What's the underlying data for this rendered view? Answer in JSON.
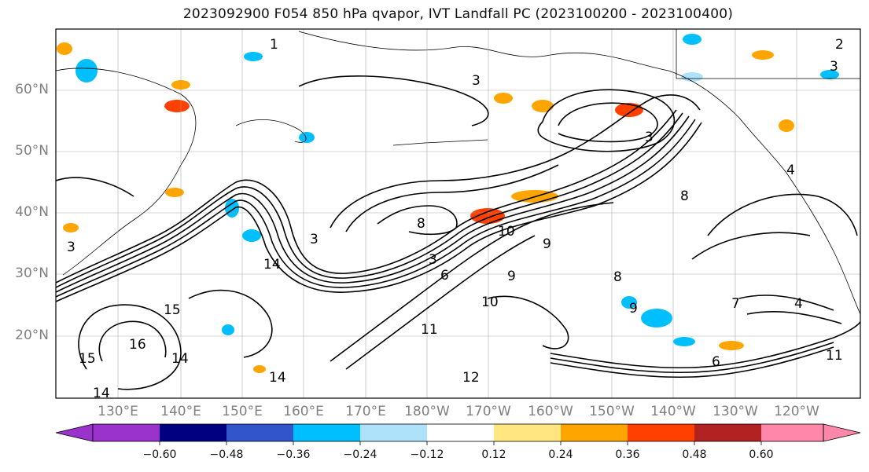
{
  "title": "2023092900 F054 850 hPa qvapor, IVT Landfall PC (2023100200 - 2023100400)",
  "lat_labels": [
    "60°N",
    "50°N",
    "40°N",
    "30°N",
    "20°N"
  ],
  "lon_labels": [
    "130°E",
    "140°E",
    "150°E",
    "160°E",
    "170°E",
    "180°W",
    "170°W",
    "160°W",
    "150°W",
    "140°W",
    "130°W",
    "120°W"
  ],
  "colorbar": {
    "colors": [
      "#9933cc",
      "#000080",
      "#3355cc",
      "#00bfff",
      "#aee2fb",
      "#ffffff",
      "#ffe680",
      "#ffa500",
      "#ff4000",
      "#b22222",
      "#ff88aa"
    ],
    "tick_labels": [
      "−0.60",
      "−0.48",
      "−0.36",
      "−0.24",
      "−0.12",
      "0.12",
      "0.24",
      "0.36",
      "0.48",
      "0.60"
    ],
    "extend": "both"
  },
  "contour_labels": [
    "1",
    "2",
    "3",
    "3",
    "3",
    "3",
    "3",
    "3",
    "4",
    "4",
    "6",
    "6",
    "7",
    "8",
    "8",
    "8",
    "9",
    "9",
    "9",
    "10",
    "10",
    "11",
    "11",
    "12",
    "14",
    "14",
    "14",
    "14",
    "15",
    "15",
    "16"
  ],
  "map_features": [
    "coastlines",
    "country-borders",
    "gridlines"
  ]
}
